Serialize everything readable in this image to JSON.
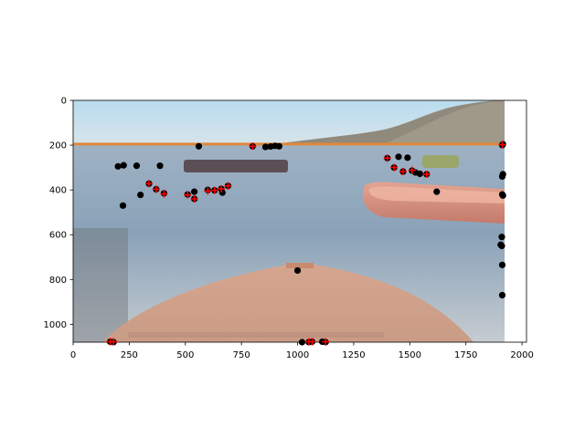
{
  "chart_data": {
    "type": "scatter",
    "title": "",
    "xlabel": "",
    "ylabel": "",
    "background": "image",
    "image_extent": {
      "x": [
        0,
        1920
      ],
      "y": [
        1080,
        0
      ]
    },
    "xlim": [
      0,
      2020
    ],
    "ylim": [
      1080,
      0
    ],
    "y_inverted": true,
    "xticks": [
      0,
      250,
      500,
      750,
      1000,
      1250,
      1500,
      1750,
      2000
    ],
    "yticks": [
      0,
      200,
      400,
      600,
      800,
      1000
    ],
    "grid": false,
    "legend": "none",
    "horizon_line": {
      "y": 195,
      "color": "#e0883a"
    },
    "series": [
      {
        "marker": "circle",
        "color": "#000000",
        "points": [
          [
            200,
            295
          ],
          [
            225,
            290
          ],
          [
            283,
            292
          ],
          [
            387,
            292
          ],
          [
            222,
            470
          ],
          [
            300,
            422
          ],
          [
            338,
            372
          ],
          [
            370,
            397
          ],
          [
            405,
            415
          ],
          [
            510,
            420
          ],
          [
            540,
            440
          ],
          [
            540,
            408
          ],
          [
            560,
            205
          ],
          [
            600,
            400
          ],
          [
            630,
            402
          ],
          [
            660,
            395
          ],
          [
            665,
            412
          ],
          [
            690,
            382
          ],
          [
            800,
            205
          ],
          [
            857,
            208
          ],
          [
            880,
            206
          ],
          [
            900,
            203
          ],
          [
            918,
            205
          ],
          [
            1400,
            258
          ],
          [
            1430,
            300
          ],
          [
            1450,
            252
          ],
          [
            1470,
            318
          ],
          [
            1490,
            256
          ],
          [
            1510,
            314
          ],
          [
            1525,
            322
          ],
          [
            1545,
            328
          ],
          [
            1575,
            330
          ],
          [
            1620,
            408
          ],
          [
            1000,
            760
          ],
          [
            1020,
            1080
          ],
          [
            1050,
            1080
          ],
          [
            1065,
            1078
          ],
          [
            1110,
            1078
          ],
          [
            1125,
            1080
          ],
          [
            165,
            1078
          ],
          [
            180,
            1080
          ],
          [
            1905,
            645
          ],
          [
            1910,
            610
          ],
          [
            1910,
            650
          ],
          [
            1912,
            735
          ],
          [
            1912,
            870
          ],
          [
            1912,
            340
          ],
          [
            1915,
            330
          ],
          [
            1912,
            420
          ],
          [
            1915,
            425
          ],
          [
            1912,
            200
          ],
          [
            1915,
            196
          ]
        ]
      },
      {
        "marker": "plus",
        "color": "#ff0000",
        "points": [
          [
            338,
            372
          ],
          [
            370,
            397
          ],
          [
            405,
            418
          ],
          [
            510,
            422
          ],
          [
            540,
            440
          ],
          [
            600,
            405
          ],
          [
            630,
            402
          ],
          [
            660,
            395
          ],
          [
            690,
            382
          ],
          [
            800,
            205
          ],
          [
            1400,
            258
          ],
          [
            1430,
            300
          ],
          [
            1470,
            318
          ],
          [
            1510,
            312
          ],
          [
            1575,
            330
          ],
          [
            165,
            1078
          ],
          [
            180,
            1078
          ],
          [
            1050,
            1078
          ],
          [
            1065,
            1078
          ],
          [
            1125,
            1078
          ],
          [
            1912,
            198
          ]
        ]
      }
    ]
  }
}
